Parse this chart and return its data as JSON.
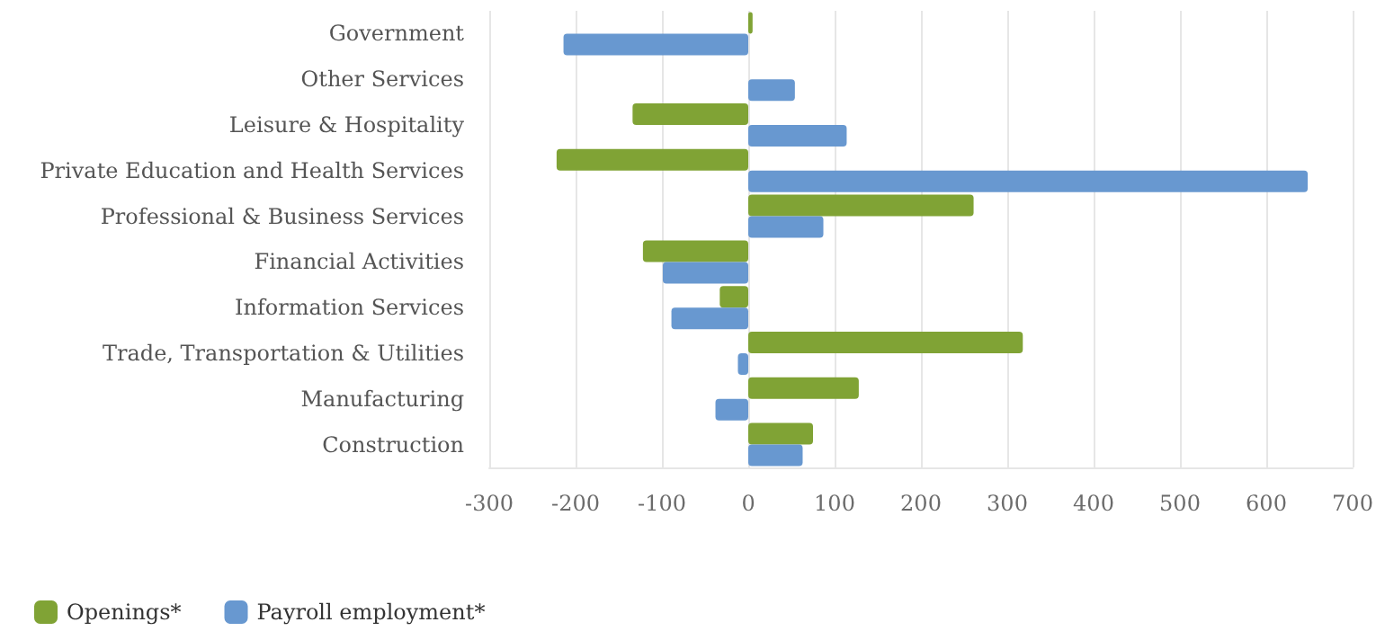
{
  "chart_data": {
    "type": "bar",
    "orientation": "horizontal",
    "categories": [
      "Government",
      "Other Services",
      "Leisure & Hospitality",
      "Private Education and Health Services",
      "Professional & Business Services",
      "Financial Activities",
      "Information Services",
      "Trade, Transportation & Utilities",
      "Manufacturing",
      "Construction"
    ],
    "series": [
      {
        "name": "Openings*",
        "color": "#80a335",
        "values": [
          5,
          null,
          -134,
          -222,
          261,
          -122,
          -33,
          318,
          128,
          75
        ]
      },
      {
        "name": "Payroll employment*",
        "color": "#6898d0",
        "values": [
          -214,
          54,
          114,
          648,
          87,
          -99,
          -89,
          -12,
          -38,
          63
        ]
      }
    ],
    "xlim": [
      -300,
      700
    ],
    "xticks": [
      -300,
      -200,
      -100,
      0,
      100,
      200,
      300,
      400,
      500,
      600,
      700
    ],
    "grid": "x",
    "legend": "bottom left"
  }
}
